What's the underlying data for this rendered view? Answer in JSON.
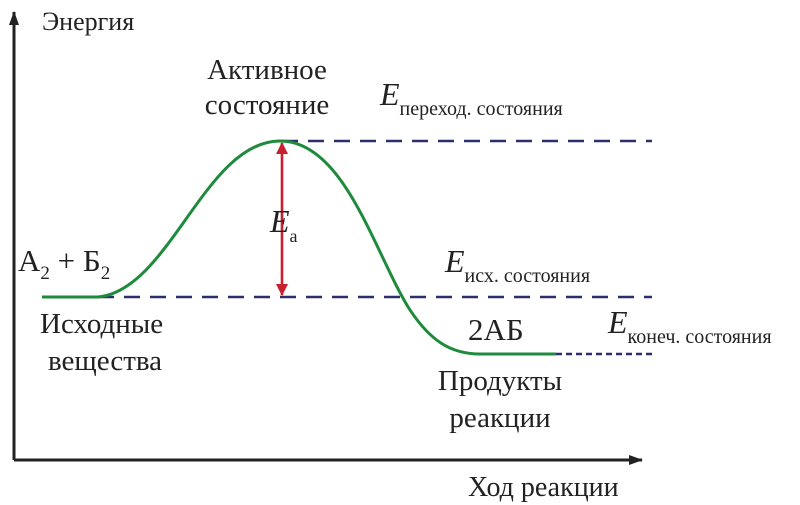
{
  "axes": {
    "y_label": "Энергия",
    "x_label": "Ход реакции"
  },
  "labels": {
    "active_line1": "Активное",
    "active_line2": "состояние",
    "reactants_formula_a": "А",
    "reactants_formula_sub1": "2",
    "reactants_formula_plus": " + Б",
    "reactants_formula_sub2": "2",
    "reactants_line1": "Исходные",
    "reactants_line2": "вещества",
    "product_formula": "2АБ",
    "products_line1": "Продукты",
    "products_line2": "реакции"
  },
  "energy_levels": {
    "symbol": "E",
    "transition_sub": "переход. состояния",
    "initial_sub": "исх. состояния",
    "final_sub": "конеч. состояния",
    "activation_sub": "а"
  },
  "colors": {
    "curve": "#1d8a3c",
    "dashed": "#2b2f6e",
    "arrow": "#c8202e",
    "axis": "#222222"
  }
}
